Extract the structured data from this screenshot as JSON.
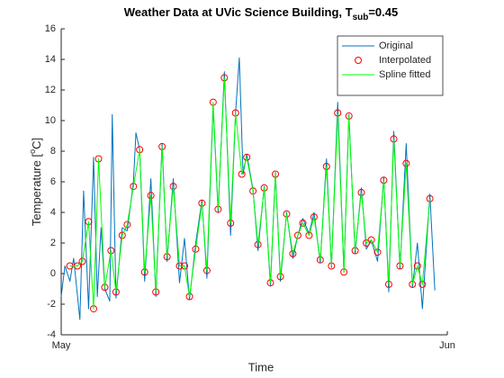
{
  "chart_data": {
    "type": "line",
    "title": "Weather Data at  UVic Science Building, T",
    "title_subscript": "sub",
    "title_suffix": "=0.45",
    "xlabel": "Time",
    "ylabel": "Temperature [",
    "ylabel_superscript": "o",
    "ylabel_suffix": "C]",
    "xlim": [
      0,
      31
    ],
    "xticks": [
      {
        "value": 0,
        "label": "May"
      },
      {
        "value": 31,
        "label": "Jun"
      }
    ],
    "ylim": [
      -4,
      16
    ],
    "yticks": [
      -4,
      -2,
      0,
      2,
      4,
      6,
      8,
      10,
      12,
      14,
      16
    ],
    "legend": "northeast",
    "series": [
      {
        "name": "Original",
        "color": "#0072bd",
        "style": "line",
        "x": [
          0,
          0.3,
          0.7,
          1.0,
          1.5,
          1.8,
          2.2,
          2.6,
          2.9,
          3.2,
          3.5,
          3.9,
          4.1,
          4.4,
          4.9,
          5.3,
          5.8,
          6.0,
          6.3,
          6.7,
          7.2,
          7.6,
          8.1,
          8.5,
          9.0,
          9.5,
          9.9,
          10.3,
          10.8,
          11.3,
          11.7,
          12.2,
          12.6,
          13.1,
          13.6,
          14.0,
          14.3,
          14.6,
          14.9,
          15.4,
          15.8,
          16.3,
          16.8,
          17.2,
          17.6,
          18.1,
          18.6,
          19.0,
          19.4,
          19.9,
          20.3,
          20.8,
          21.3,
          21.7,
          22.2,
          22.7,
          23.1,
          23.6,
          24.1,
          24.5,
          24.9,
          25.4,
          25.9,
          26.3,
          26.7,
          27.2,
          27.7,
          28.2,
          28.6,
          29.0,
          29.6,
          30.0
        ],
        "values": [
          -1.5,
          0.5,
          -0.5,
          1,
          -3,
          5.4,
          -2.3,
          7.6,
          -1.5,
          3,
          -1,
          -1.8,
          10.4,
          -1.6,
          3,
          2.8,
          6,
          9.2,
          8.1,
          -0.5,
          6.2,
          -1.5,
          8.5,
          0.8,
          6.2,
          -0.6,
          2.3,
          -1.7,
          2,
          4.8,
          -0.3,
          11,
          4,
          13.2,
          2.5,
          10.5,
          14.1,
          6.5,
          7.8,
          5.5,
          1.5,
          5.7,
          -0.8,
          6.6,
          -0.5,
          4,
          1,
          2.5,
          3.6,
          2.6,
          4,
          0.7,
          7.5,
          0.4,
          11.2,
          0.1,
          10.4,
          1.3,
          5.6,
          1.6,
          2.2,
          0.8,
          6.3,
          -1.2,
          9.3,
          0.3,
          8.5,
          -0.9,
          2,
          -2.3,
          5.2,
          -1.1
        ]
      },
      {
        "name": "Interpolated",
        "color": "#ff0000",
        "style": "marker",
        "x": [
          0.7,
          1.3,
          1.7,
          2.2,
          2.6,
          3.0,
          3.5,
          4.0,
          4.4,
          4.9,
          5.3,
          5.8,
          6.3,
          6.7,
          7.2,
          7.6,
          8.1,
          8.5,
          9.0,
          9.5,
          9.9,
          10.3,
          10.8,
          11.3,
          11.7,
          12.2,
          12.6,
          13.1,
          13.6,
          14.0,
          14.5,
          14.9,
          15.4,
          15.8,
          16.3,
          16.8,
          17.2,
          17.6,
          18.1,
          18.6,
          19.0,
          19.4,
          19.9,
          20.3,
          20.8,
          21.3,
          21.7,
          22.2,
          22.7,
          23.1,
          23.6,
          24.1,
          24.5,
          24.9,
          25.4,
          25.9,
          26.3,
          26.7,
          27.2,
          27.7,
          28.2,
          28.6,
          29.0,
          29.6
        ],
        "values": [
          0.5,
          0.5,
          0.8,
          3.4,
          -2.3,
          7.5,
          -0.9,
          1.5,
          -1.2,
          2.5,
          3.2,
          5.7,
          8.1,
          0.1,
          5.1,
          -1.2,
          8.3,
          1.1,
          5.7,
          0.5,
          0.5,
          -1.5,
          1.6,
          4.6,
          0.2,
          11.2,
          4.2,
          12.8,
          3.3,
          10.5,
          6.5,
          7.6,
          5.4,
          1.9,
          5.6,
          -0.6,
          6.5,
          -0.2,
          3.9,
          1.3,
          2.5,
          3.3,
          2.5,
          3.7,
          0.9,
          7.0,
          0.5,
          10.5,
          0.1,
          10.3,
          1.5,
          5.3,
          2.0,
          2.2,
          1.4,
          6.1,
          -0.7,
          8.8,
          0.5,
          7.2,
          -0.7,
          0.5,
          -0.7,
          4.9
        ]
      },
      {
        "name": "Spline fitted",
        "color": "#00ff00",
        "style": "line",
        "x": [
          0.7,
          1.3,
          1.7,
          2.2,
          2.6,
          3.0,
          3.5,
          4.0,
          4.4,
          4.9,
          5.3,
          5.8,
          6.3,
          6.7,
          7.2,
          7.6,
          8.1,
          8.5,
          9.0,
          9.5,
          9.9,
          10.3,
          10.8,
          11.3,
          11.7,
          12.2,
          12.6,
          13.1,
          13.6,
          14.0,
          14.5,
          14.9,
          15.4,
          15.8,
          16.3,
          16.8,
          17.2,
          17.6,
          18.1,
          18.6,
          19.0,
          19.4,
          19.9,
          20.3,
          20.8,
          21.3,
          21.7,
          22.2,
          22.7,
          23.1,
          23.6,
          24.1,
          24.5,
          24.9,
          25.4,
          25.9,
          26.3,
          26.7,
          27.2,
          27.7,
          28.2,
          28.6,
          29.0,
          29.6
        ],
        "values": [
          0.5,
          0.5,
          0.8,
          3.4,
          -2.3,
          7.5,
          -0.9,
          1.5,
          -1.2,
          2.5,
          3.2,
          5.7,
          8.1,
          0.1,
          5.1,
          -1.2,
          8.3,
          1.1,
          5.7,
          0.5,
          0.5,
          -1.5,
          1.6,
          4.6,
          0.2,
          11.2,
          4.2,
          12.8,
          3.3,
          10.5,
          6.5,
          7.6,
          5.4,
          1.9,
          5.6,
          -0.6,
          6.5,
          -0.2,
          3.9,
          1.3,
          2.5,
          3.3,
          2.5,
          3.7,
          0.9,
          7.0,
          0.5,
          10.5,
          0.1,
          10.3,
          1.5,
          5.3,
          2.0,
          2.2,
          1.4,
          6.1,
          -0.7,
          8.8,
          0.5,
          7.2,
          -0.7,
          0.5,
          -0.7,
          4.9
        ]
      }
    ]
  }
}
